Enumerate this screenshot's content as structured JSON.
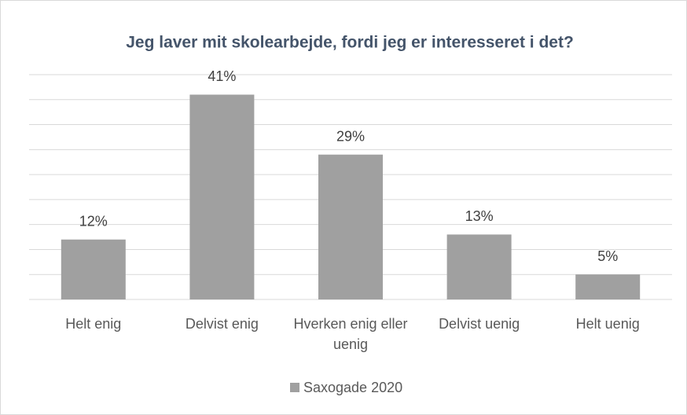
{
  "chart_data": {
    "type": "bar",
    "title": "Jeg laver mit skolearbejde, fordi jeg er interesseret i det?",
    "categories": [
      "Helt enig",
      "Delvist enig",
      "Hverken enig eller uenig",
      "Delvist uenig",
      "Helt uenig"
    ],
    "series": [
      {
        "name": "Saxogade 2020",
        "color": "#a0a0a0",
        "values": [
          12,
          41,
          29,
          13,
          5
        ],
        "value_labels": [
          "12%",
          "41%",
          "29%",
          "13%",
          "5%"
        ]
      }
    ],
    "ylim": [
      0,
      45
    ],
    "yticks": [
      0,
      5,
      10,
      15,
      20,
      25,
      30,
      35,
      40,
      45
    ],
    "grid": true,
    "legend": "bottom"
  }
}
